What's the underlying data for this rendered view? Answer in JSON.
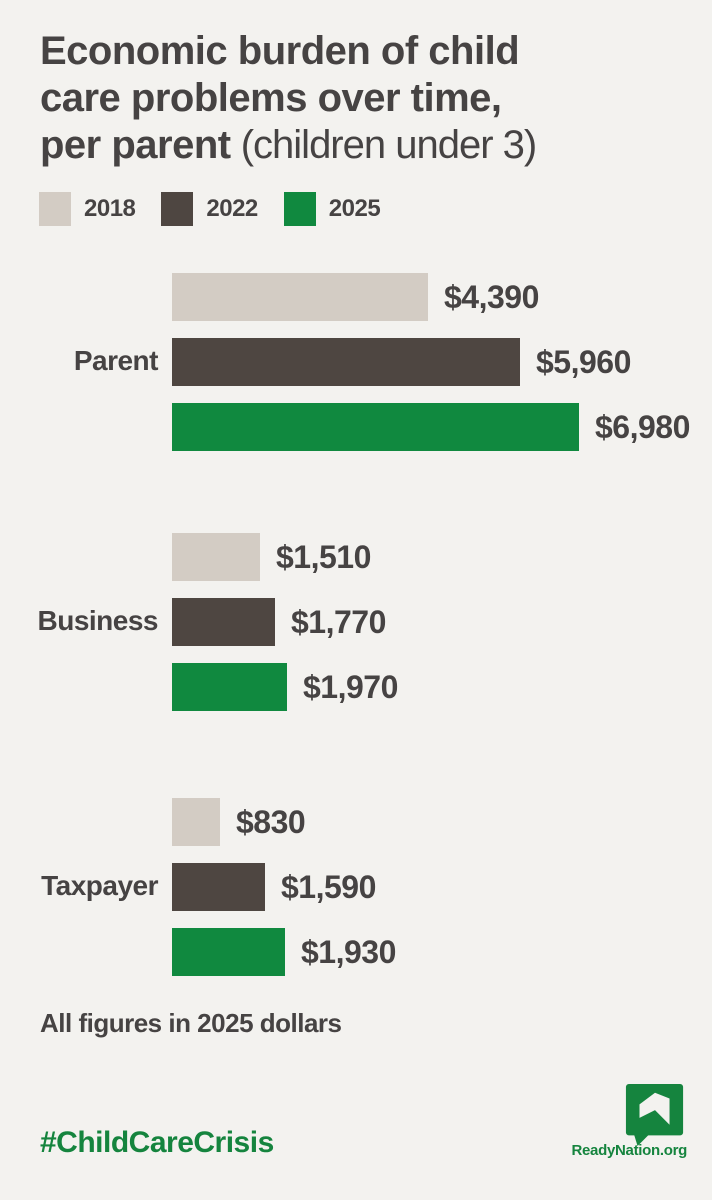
{
  "header": {
    "title_line1": "Economic burden of child",
    "title_line2": "care problems over time,",
    "title_line3_bold": "per parent",
    "title_line3_regular": " (children under 3)"
  },
  "legend": {
    "items": [
      {
        "label": "2018",
        "color": "#d3ccc4"
      },
      {
        "label": "2022",
        "color": "#4e4641"
      },
      {
        "label": "2025",
        "color": "#10893f"
      }
    ]
  },
  "chart_data": {
    "type": "bar",
    "orientation": "horizontal",
    "title": "Economic burden of child care problems over time, per parent (children under 3)",
    "series": [
      {
        "name": "2018",
        "color": "#d3ccc4"
      },
      {
        "name": "2022",
        "color": "#4e4641"
      },
      {
        "name": "2025",
        "color": "#10893f"
      }
    ],
    "categories": [
      "Parent",
      "Business",
      "Taxpayer"
    ],
    "groups": [
      {
        "category": "Parent",
        "values": [
          4390,
          5960,
          6980
        ],
        "labels": [
          "$4,390",
          "$5,960",
          "$6,980"
        ]
      },
      {
        "category": "Business",
        "values": [
          1510,
          1770,
          1970
        ],
        "labels": [
          "$1,510",
          "$1,770",
          "$1,970"
        ]
      },
      {
        "category": "Taxpayer",
        "values": [
          830,
          1590,
          1930
        ],
        "labels": [
          "$830",
          "$1,590",
          "$1,930"
        ]
      }
    ],
    "xmax": 6980,
    "grid": false,
    "legend_position": "top",
    "note": "All figures in 2025 dollars"
  },
  "footer": {
    "note": "All figures in 2025 dollars",
    "hashtag": "#ChildCareCrisis",
    "site": "ReadyNation.org"
  },
  "colors": {
    "background": "#f3f2ef",
    "text": "#464343",
    "green": "#10893f",
    "footer_green": "#15843e"
  }
}
